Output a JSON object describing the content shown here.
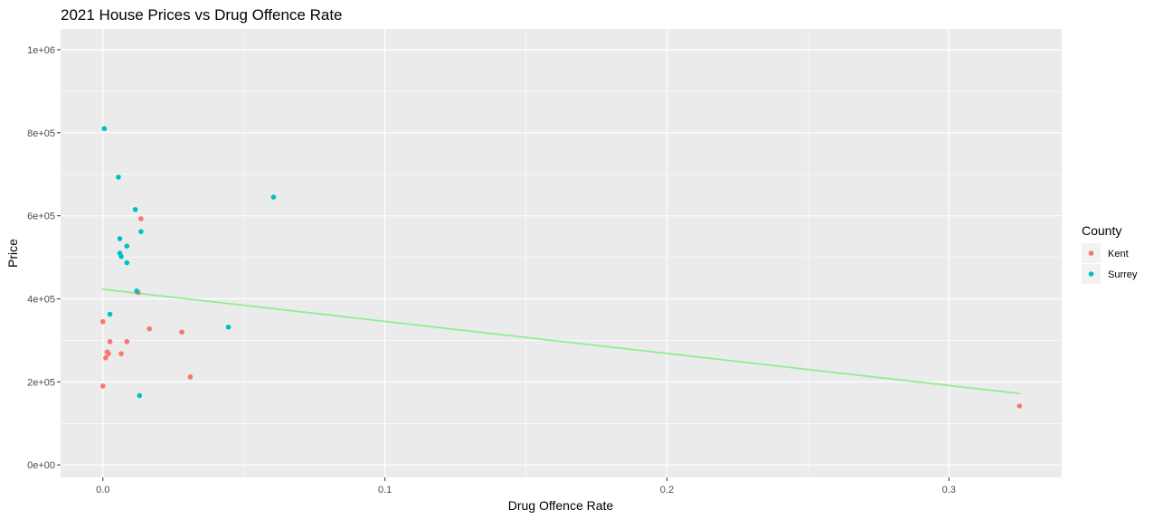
{
  "chart_data": {
    "type": "scatter",
    "title": "2021 House Prices vs Drug Offence Rate",
    "xlabel": "Drug Offence Rate",
    "ylabel": "Price",
    "xlim": [
      -0.015,
      0.34
    ],
    "ylim": [
      -30000,
      1050000
    ],
    "x_ticks": [
      0.0,
      0.1,
      0.2,
      0.3
    ],
    "x_tick_labels": [
      "0.0",
      "0.1",
      "0.2",
      "0.3"
    ],
    "x_minor_ticks": [
      0.05,
      0.15,
      0.25
    ],
    "y_ticks": [
      0,
      200000,
      400000,
      600000,
      800000,
      1000000
    ],
    "y_tick_labels": [
      "0e+00",
      "2e+05",
      "4e+05",
      "6e+05",
      "8e+05",
      "1e+06"
    ],
    "y_minor_ticks": [
      100000,
      300000,
      500000,
      700000,
      900000
    ],
    "grid": true,
    "background": "#EBEBEB",
    "legend": {
      "title": "County",
      "position": "right",
      "entries": [
        "Kent",
        "Surrey"
      ]
    },
    "series": [
      {
        "name": "Kent",
        "color": "#F8766D",
        "points": [
          {
            "x": 0.0,
            "y": 190000
          },
          {
            "x": 0.0,
            "y": 345000
          },
          {
            "x": 0.001,
            "y": 258000
          },
          {
            "x": 0.0015,
            "y": 272000
          },
          {
            "x": 0.002,
            "y": 268000
          },
          {
            "x": 0.0025,
            "y": 297000
          },
          {
            "x": 0.0065,
            "y": 268000
          },
          {
            "x": 0.0085,
            "y": 297000
          },
          {
            "x": 0.0135,
            "y": 593000
          },
          {
            "x": 0.0125,
            "y": 415000
          },
          {
            "x": 0.0165,
            "y": 328000
          },
          {
            "x": 0.028,
            "y": 320000
          },
          {
            "x": 0.031,
            "y": 212000
          },
          {
            "x": 0.325,
            "y": 142000
          }
        ]
      },
      {
        "name": "Surrey",
        "color": "#00BFC4",
        "points": [
          {
            "x": 0.0005,
            "y": 810000
          },
          {
            "x": 0.0025,
            "y": 363000
          },
          {
            "x": 0.0055,
            "y": 693000
          },
          {
            "x": 0.006,
            "y": 545000
          },
          {
            "x": 0.006,
            "y": 510000
          },
          {
            "x": 0.0065,
            "y": 502000
          },
          {
            "x": 0.0085,
            "y": 527000
          },
          {
            "x": 0.0085,
            "y": 487000
          },
          {
            "x": 0.0115,
            "y": 615000
          },
          {
            "x": 0.0135,
            "y": 562000
          },
          {
            "x": 0.012,
            "y": 419000
          },
          {
            "x": 0.013,
            "y": 167000
          },
          {
            "x": 0.0445,
            "y": 332000
          },
          {
            "x": 0.0605,
            "y": 645000
          }
        ]
      }
    ],
    "trend_line": {
      "color": "#90EE90",
      "x": [
        0.0,
        0.325
      ],
      "y": [
        423000,
        172000
      ]
    }
  }
}
